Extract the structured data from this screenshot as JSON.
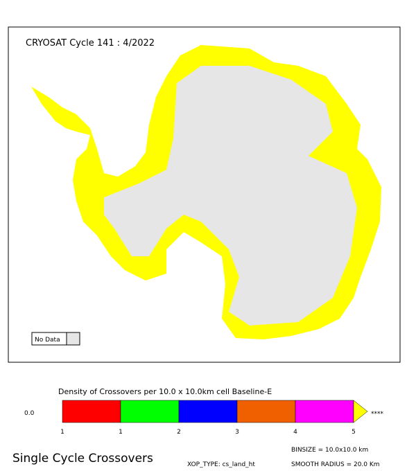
{
  "map": {
    "title": "CRYOSAT Cycle 141 : 4/2022",
    "no_data_label": "No Data"
  },
  "legend": {
    "title": "Density of Crossovers per  10.0 x  10.0km cell Baseline-E",
    "low_label": "0.0",
    "colors": [
      "#ff0000",
      "#00ff00",
      "#0000ff",
      "#f06000",
      "#ff00ff"
    ],
    "overflow_color": "#ffff00",
    "overflow_label": "****",
    "ticks": [
      "1",
      "1",
      "2",
      "3",
      "4",
      "5"
    ]
  },
  "footer": {
    "heading": "Single Cycle Crossovers",
    "binsize": "BINSIZE = 10.0x10.0 km",
    "xop_type": "XOP_TYPE: cs_land_ht",
    "smooth_radius": "SMOOTH RADIUS =  20.0 Km"
  }
}
